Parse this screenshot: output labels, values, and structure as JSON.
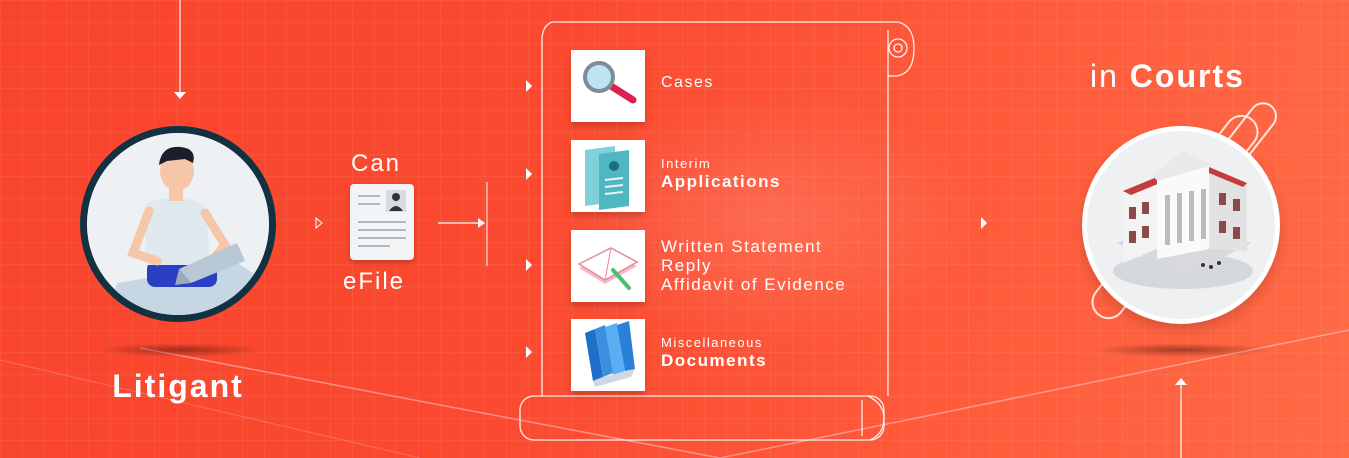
{
  "litigant": {
    "label": "Litigant",
    "avatar_icon": "person-with-laptop-icon"
  },
  "efile": {
    "top_label": "Can",
    "bottom_label": "eFile",
    "icon": "document-profile-icon"
  },
  "scroll_items": [
    {
      "icon": "magnifier-icon",
      "line1": "Cases",
      "line2": ""
    },
    {
      "icon": "application-forms-icon",
      "line1": "Interim",
      "line2": "Applications"
    },
    {
      "icon": "notebook-pencil-icon",
      "line1": "Written Statement",
      "line2": "Reply",
      "line3": "Affidavit of Evidence"
    },
    {
      "icon": "books-icon",
      "line1": "Miscellaneous",
      "line2": "Documents"
    }
  ],
  "courts": {
    "prefix": "in",
    "title": "Courts",
    "icon": "court-building-icon"
  },
  "colors": {
    "background": "#f9452d",
    "avatar_border": "#123241",
    "text": "#ffffff"
  }
}
